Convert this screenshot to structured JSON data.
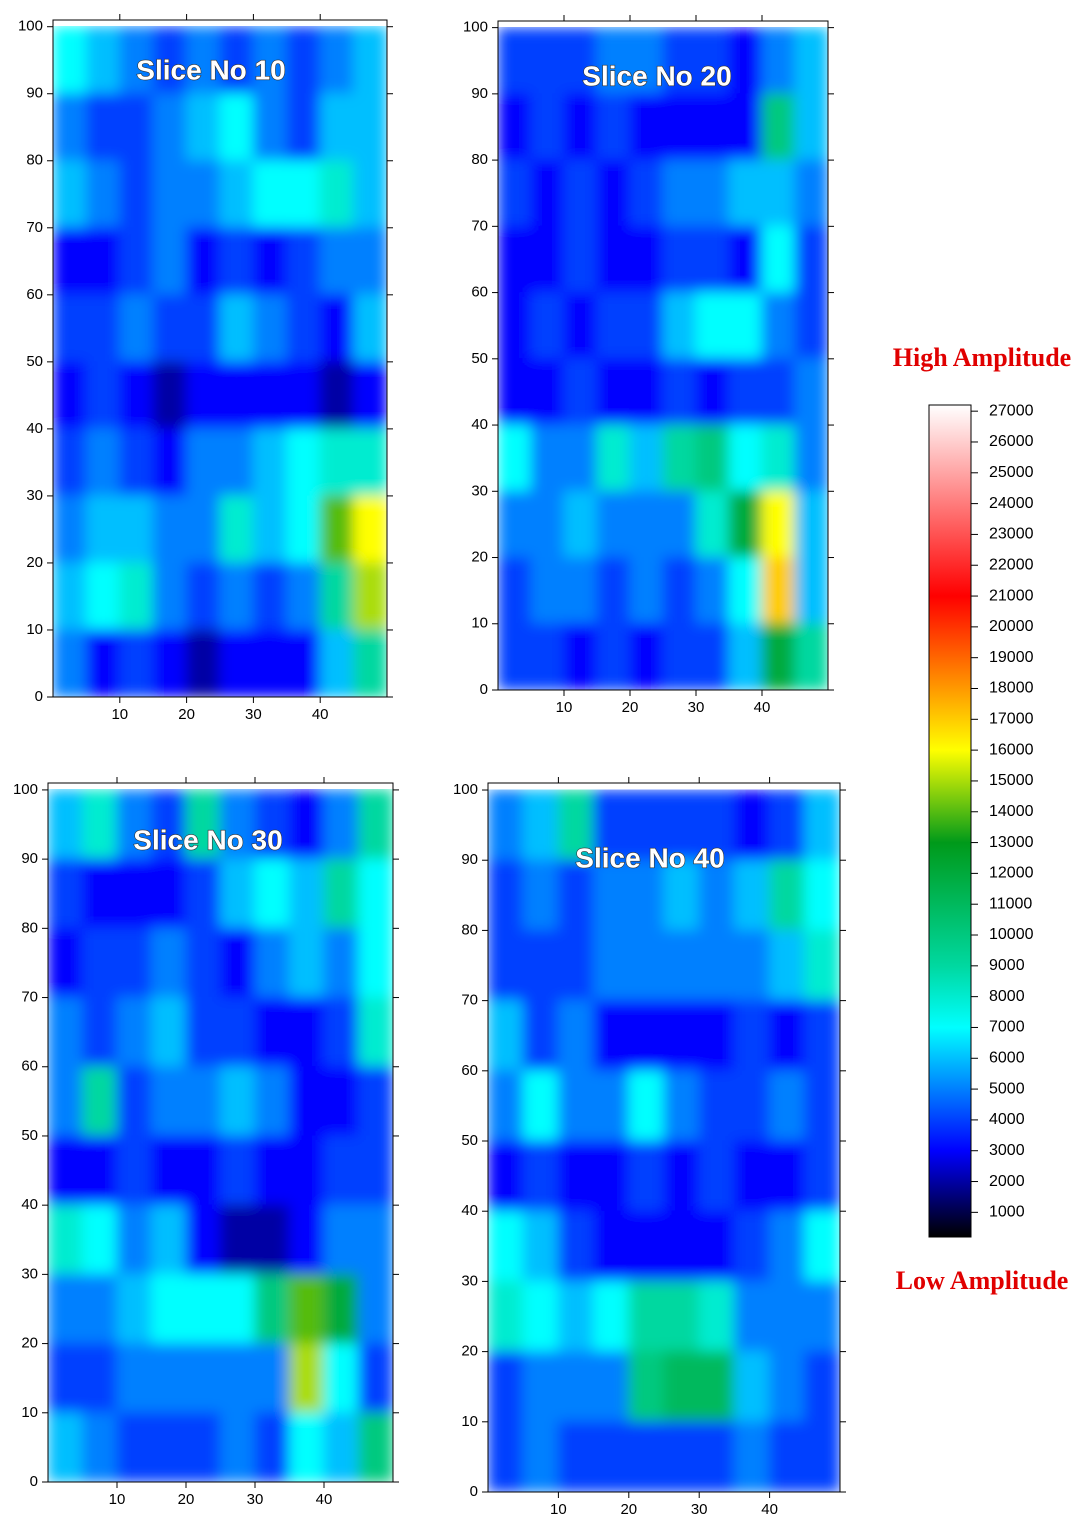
{
  "chart_data": [
    {
      "type": "heatmap",
      "title": "Slice No 10",
      "xlim": [
        0,
        50
      ],
      "ylim": [
        0,
        101
      ],
      "xticks": [
        10,
        20,
        30,
        40
      ],
      "yticks": [
        0,
        10,
        20,
        30,
        40,
        50,
        60,
        70,
        80,
        90,
        100
      ],
      "x": [
        2.5,
        7.5,
        12.5,
        17.5,
        22.5,
        27.5,
        32.5,
        37.5,
        42.5,
        47.5
      ],
      "y": [
        95,
        85,
        75,
        65,
        55,
        45,
        35,
        25,
        15,
        5
      ],
      "values": [
        [
          7000,
          6000,
          5000,
          4000,
          5000,
          4000,
          5000,
          4000,
          5000,
          6000
        ],
        [
          5000,
          4000,
          4000,
          5000,
          6000,
          7000,
          5000,
          4000,
          6000,
          6000
        ],
        [
          6000,
          5000,
          4000,
          5000,
          5000,
          6000,
          7000,
          7000,
          8000,
          6000
        ],
        [
          3000,
          3000,
          4000,
          5000,
          3000,
          4000,
          3000,
          4000,
          5000,
          5000
        ],
        [
          4000,
          4000,
          5000,
          4000,
          4000,
          6000,
          5000,
          4000,
          3000,
          6000
        ],
        [
          3000,
          4000,
          3000,
          2000,
          3000,
          3000,
          3000,
          3000,
          2000,
          3000
        ],
        [
          4000,
          5000,
          4000,
          3000,
          5000,
          5000,
          6000,
          7000,
          8000,
          8000
        ],
        [
          5000,
          6000,
          6000,
          5000,
          5000,
          8000,
          6000,
          7000,
          14000,
          16000
        ],
        [
          6000,
          7000,
          8000,
          5000,
          4000,
          5000,
          4000,
          5000,
          9000,
          15000
        ],
        [
          5000,
          3000,
          4000,
          3000,
          2000,
          3000,
          3000,
          3000,
          6000,
          9000
        ]
      ]
    },
    {
      "type": "heatmap",
      "title": "Slice No 20",
      "xlim": [
        0,
        50
      ],
      "ylim": [
        0,
        101
      ],
      "xticks": [
        10,
        20,
        30,
        40
      ],
      "yticks": [
        0,
        10,
        20,
        30,
        40,
        50,
        60,
        70,
        80,
        90,
        100
      ],
      "x": [
        2.5,
        7.5,
        12.5,
        17.5,
        22.5,
        27.5,
        32.5,
        37.5,
        42.5,
        47.5
      ],
      "y": [
        95,
        85,
        75,
        65,
        55,
        45,
        35,
        25,
        15,
        5
      ],
      "values": [
        [
          4000,
          4000,
          4000,
          5000,
          5000,
          4000,
          4000,
          3000,
          5000,
          6000
        ],
        [
          3000,
          4000,
          3000,
          4000,
          3000,
          3000,
          3000,
          3000,
          10000,
          6000
        ],
        [
          4000,
          3000,
          4000,
          3000,
          4000,
          5000,
          5000,
          6000,
          6000,
          5000
        ],
        [
          3000,
          3000,
          4000,
          3000,
          3000,
          4000,
          4000,
          3000,
          7000,
          4000
        ],
        [
          3000,
          4000,
          3000,
          4000,
          4000,
          6000,
          7000,
          7000,
          5000,
          4000
        ],
        [
          3000,
          3000,
          4000,
          3000,
          3000,
          4000,
          3000,
          4000,
          4000,
          5000
        ],
        [
          7000,
          5000,
          5000,
          8000,
          6000,
          9000,
          10000,
          7000,
          8000,
          5000
        ],
        [
          5000,
          5000,
          6000,
          5000,
          5000,
          5000,
          8000,
          12000,
          16000,
          6000
        ],
        [
          4000,
          5000,
          5000,
          4000,
          5000,
          4000,
          5000,
          7000,
          17000,
          6000
        ],
        [
          4000,
          4000,
          3000,
          4000,
          3000,
          4000,
          4000,
          6000,
          12000,
          9000
        ]
      ]
    },
    {
      "type": "heatmap",
      "title": "Slice No 30",
      "xlim": [
        0,
        50
      ],
      "ylim": [
        0,
        101
      ],
      "xticks": [
        10,
        20,
        30,
        40
      ],
      "yticks": [
        0,
        10,
        20,
        30,
        40,
        50,
        60,
        70,
        80,
        90,
        100
      ],
      "x": [
        2.5,
        7.5,
        12.5,
        17.5,
        22.5,
        27.5,
        32.5,
        37.5,
        42.5,
        47.5
      ],
      "y": [
        95,
        85,
        75,
        65,
        55,
        45,
        35,
        25,
        15,
        5
      ],
      "values": [
        [
          6000,
          8000,
          5000,
          4000,
          9000,
          5000,
          4000,
          3000,
          5000,
          9000
        ],
        [
          4000,
          3000,
          3000,
          3000,
          4000,
          6000,
          7000,
          6000,
          9000,
          7000
        ],
        [
          3000,
          4000,
          4000,
          5000,
          4000,
          3000,
          5000,
          6000,
          5000,
          7000
        ],
        [
          5000,
          4000,
          5000,
          6000,
          4000,
          4000,
          3000,
          3000,
          4000,
          8000
        ],
        [
          5000,
          9000,
          4000,
          5000,
          5000,
          6000,
          5000,
          3000,
          3000,
          4000
        ],
        [
          3000,
          3000,
          4000,
          3000,
          3000,
          4000,
          3000,
          3000,
          4000,
          4000
        ],
        [
          8000,
          7000,
          5000,
          6000,
          3000,
          2000,
          2000,
          3000,
          5000,
          5000
        ],
        [
          5000,
          5000,
          6000,
          7000,
          7000,
          7000,
          10000,
          14000,
          12000,
          5000
        ],
        [
          4000,
          4000,
          5000,
          5000,
          5000,
          5000,
          5000,
          15000,
          7000,
          4000
        ],
        [
          6000,
          5000,
          4000,
          4000,
          4000,
          5000,
          4000,
          7000,
          6000,
          10000
        ]
      ]
    },
    {
      "type": "heatmap",
      "title": "Slice No 40",
      "xlim": [
        0,
        50
      ],
      "ylim": [
        0,
        101
      ],
      "xticks": [
        10,
        20,
        30,
        40
      ],
      "yticks": [
        0,
        10,
        20,
        30,
        40,
        50,
        60,
        70,
        80,
        90,
        100
      ],
      "x": [
        2.5,
        7.5,
        12.5,
        17.5,
        22.5,
        27.5,
        32.5,
        37.5,
        42.5,
        47.5
      ],
      "y": [
        95,
        85,
        75,
        65,
        55,
        45,
        35,
        25,
        15,
        5
      ],
      "values": [
        [
          5000,
          6000,
          9000,
          4000,
          4000,
          4000,
          4000,
          3000,
          4000,
          6000
        ],
        [
          4000,
          5000,
          4000,
          5000,
          5000,
          6000,
          5000,
          6000,
          9000,
          7000
        ],
        [
          4000,
          4000,
          4000,
          5000,
          5000,
          5000,
          5000,
          5000,
          6000,
          8000
        ],
        [
          6000,
          4000,
          5000,
          3000,
          3000,
          3000,
          3000,
          4000,
          3000,
          4000
        ],
        [
          5000,
          7000,
          5000,
          5000,
          7000,
          5000,
          4000,
          4000,
          5000,
          4000
        ],
        [
          3000,
          4000,
          3000,
          3000,
          4000,
          3000,
          4000,
          3000,
          3000,
          4000
        ],
        [
          7000,
          6000,
          4000,
          3000,
          3000,
          3000,
          3000,
          4000,
          5000,
          7000
        ],
        [
          8000,
          7000,
          6000,
          7000,
          9000,
          9000,
          8000,
          5000,
          5000,
          5000
        ],
        [
          4000,
          5000,
          5000,
          5000,
          10000,
          11000,
          11000,
          6000,
          5000,
          4000
        ],
        [
          4000,
          5000,
          4000,
          4000,
          4000,
          4000,
          4000,
          5000,
          4000,
          4000
        ]
      ]
    },
    {
      "type": "colorbar",
      "top_label": "High Amplitude",
      "bottom_label": "Low Amplitude",
      "ylim": [
        200,
        27200
      ],
      "yticks": [
        1000,
        2000,
        3000,
        4000,
        5000,
        6000,
        7000,
        8000,
        9000,
        10000,
        11000,
        12000,
        13000,
        14000,
        15000,
        16000,
        17000,
        18000,
        19000,
        20000,
        21000,
        22000,
        23000,
        24000,
        25000,
        26000,
        27000
      ],
      "colorscale": [
        {
          "value": 200,
          "color": "#000000"
        },
        {
          "value": 3000,
          "color": "#0000ff"
        },
        {
          "value": 7000,
          "color": "#00ffff"
        },
        {
          "value": 9000,
          "color": "#00d8a0"
        },
        {
          "value": 13000,
          "color": "#009a1a"
        },
        {
          "value": 16000,
          "color": "#ffff00"
        },
        {
          "value": 18000,
          "color": "#ff9900"
        },
        {
          "value": 21000,
          "color": "#ff0000"
        },
        {
          "value": 27200,
          "color": "#ffffff"
        }
      ]
    }
  ]
}
